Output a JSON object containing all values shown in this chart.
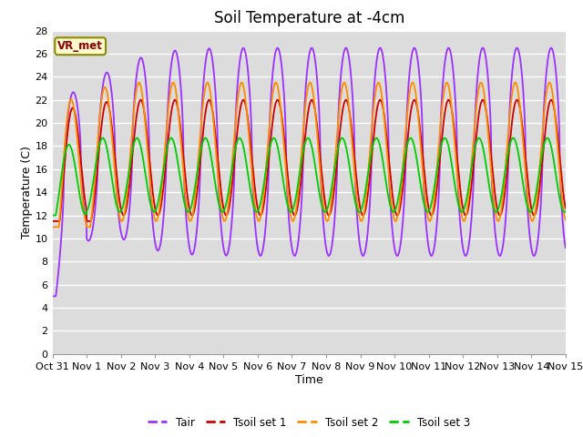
{
  "title": "Soil Temperature at -4cm",
  "xlabel": "Time",
  "ylabel": "Temperature (C)",
  "ylim": [
    0,
    28
  ],
  "annotation": "VR_met",
  "line_colors": {
    "Tair": "#9B30FF",
    "Tsoil set 1": "#CC0000",
    "Tsoil set 2": "#FF8C00",
    "Tsoil set 3": "#00CC00"
  },
  "legend_labels": [
    "Tair",
    "Tsoil set 1",
    "Tsoil set 2",
    "Tsoil set 3"
  ],
  "x_tick_labels": [
    "Oct 31",
    "Nov 1",
    "Nov 2",
    "Nov 3",
    "Nov 4",
    "Nov 5",
    "Nov 6",
    "Nov 7",
    "Nov 8",
    "Nov 9",
    "Nov 10",
    "Nov 11",
    "Nov 12",
    "Nov 13",
    "Nov 14",
    "Nov 15"
  ],
  "plot_bg_color": "#DCDCDC",
  "fig_bg_color": "#FFFFFF",
  "grid_color": "#FFFFFF",
  "title_fontsize": 12,
  "axis_fontsize": 9,
  "tick_fontsize": 8
}
